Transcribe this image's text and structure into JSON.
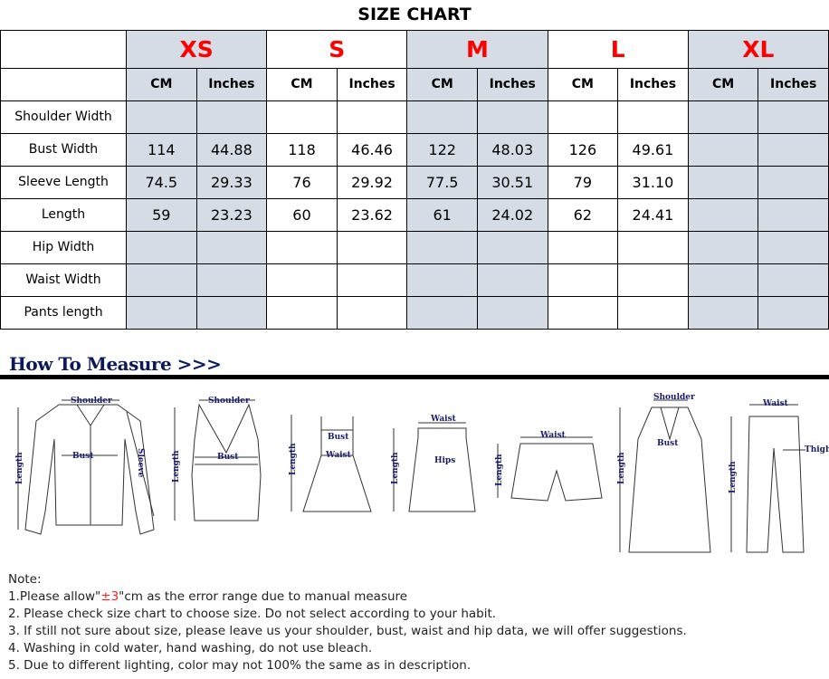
{
  "title": "SIZE CHART",
  "sizes": [
    "XS",
    "S",
    "M",
    "L",
    "XL"
  ],
  "units": [
    "CM",
    "Inches"
  ],
  "shaded_color": "#d6dce5",
  "size_color": "#ff0000",
  "rows": [
    {
      "label": "Shoulder Width",
      "values": [
        "",
        "",
        "",
        "",
        "",
        "",
        "",
        "",
        "",
        ""
      ]
    },
    {
      "label": "Bust Width",
      "values": [
        "114",
        "44.88",
        "118",
        "46.46",
        "122",
        "48.03",
        "126",
        "49.61",
        "",
        ""
      ]
    },
    {
      "label": "Sleeve Length",
      "values": [
        "74.5",
        "29.33",
        "76",
        "29.92",
        "77.5",
        "30.51",
        "79",
        "31.10",
        "",
        ""
      ]
    },
    {
      "label": "Length",
      "values": [
        "59",
        "23.23",
        "60",
        "23.62",
        "61",
        "24.02",
        "62",
        "24.41",
        "",
        ""
      ]
    },
    {
      "label": "Hip Width",
      "values": [
        "",
        "",
        "",
        "",
        "",
        "",
        "",
        "",
        "",
        ""
      ]
    },
    {
      "label": "Waist Width",
      "values": [
        "",
        "",
        "",
        "",
        "",
        "",
        "",
        "",
        "",
        ""
      ]
    },
    {
      "label": "Pants length",
      "values": [
        "",
        "",
        "",
        "",
        "",
        "",
        "",
        "",
        "",
        ""
      ]
    }
  ],
  "measure": {
    "title": "How To Measure >>>",
    "labels": {
      "shoulder": "Shoulder",
      "bust": "Bust",
      "sleeve": "Sleeve",
      "length": "Length",
      "waist": "Waist",
      "hips": "Hips",
      "thigh": "Thigh"
    }
  },
  "notes": {
    "heading": "Note:",
    "n1_pre": "1.Please allow\"",
    "n1_red": "±3",
    "n1_post": "\"cm as the error range due to manual measure",
    "items": [
      "2. Please check size chart to choose size. Do not select according to your habit.",
      "3. If still not sure about size, please leave us your shoulder, bust, waist and hip data, we will offer suggestions.",
      "4. Washing in cold water, hand washing, do not use bleach.",
      "5. Due to different lighting, color may not 100% the same as in description."
    ]
  }
}
